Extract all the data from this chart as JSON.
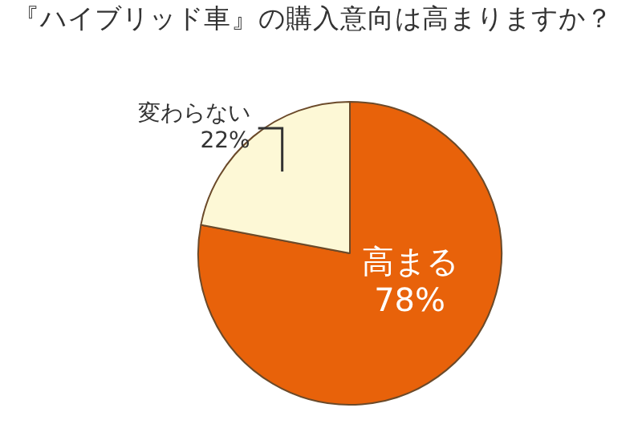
{
  "chart_data": {
    "type": "pie",
    "title": "『ハイブリッド車』の購入意向は高まりますか？",
    "categories": [
      "高まる",
      "変わらない"
    ],
    "values": [
      78,
      22
    ],
    "colors": [
      "#e8620a",
      "#fdf8d6"
    ],
    "value_labels": [
      "78%",
      "22%"
    ],
    "legend": false
  }
}
